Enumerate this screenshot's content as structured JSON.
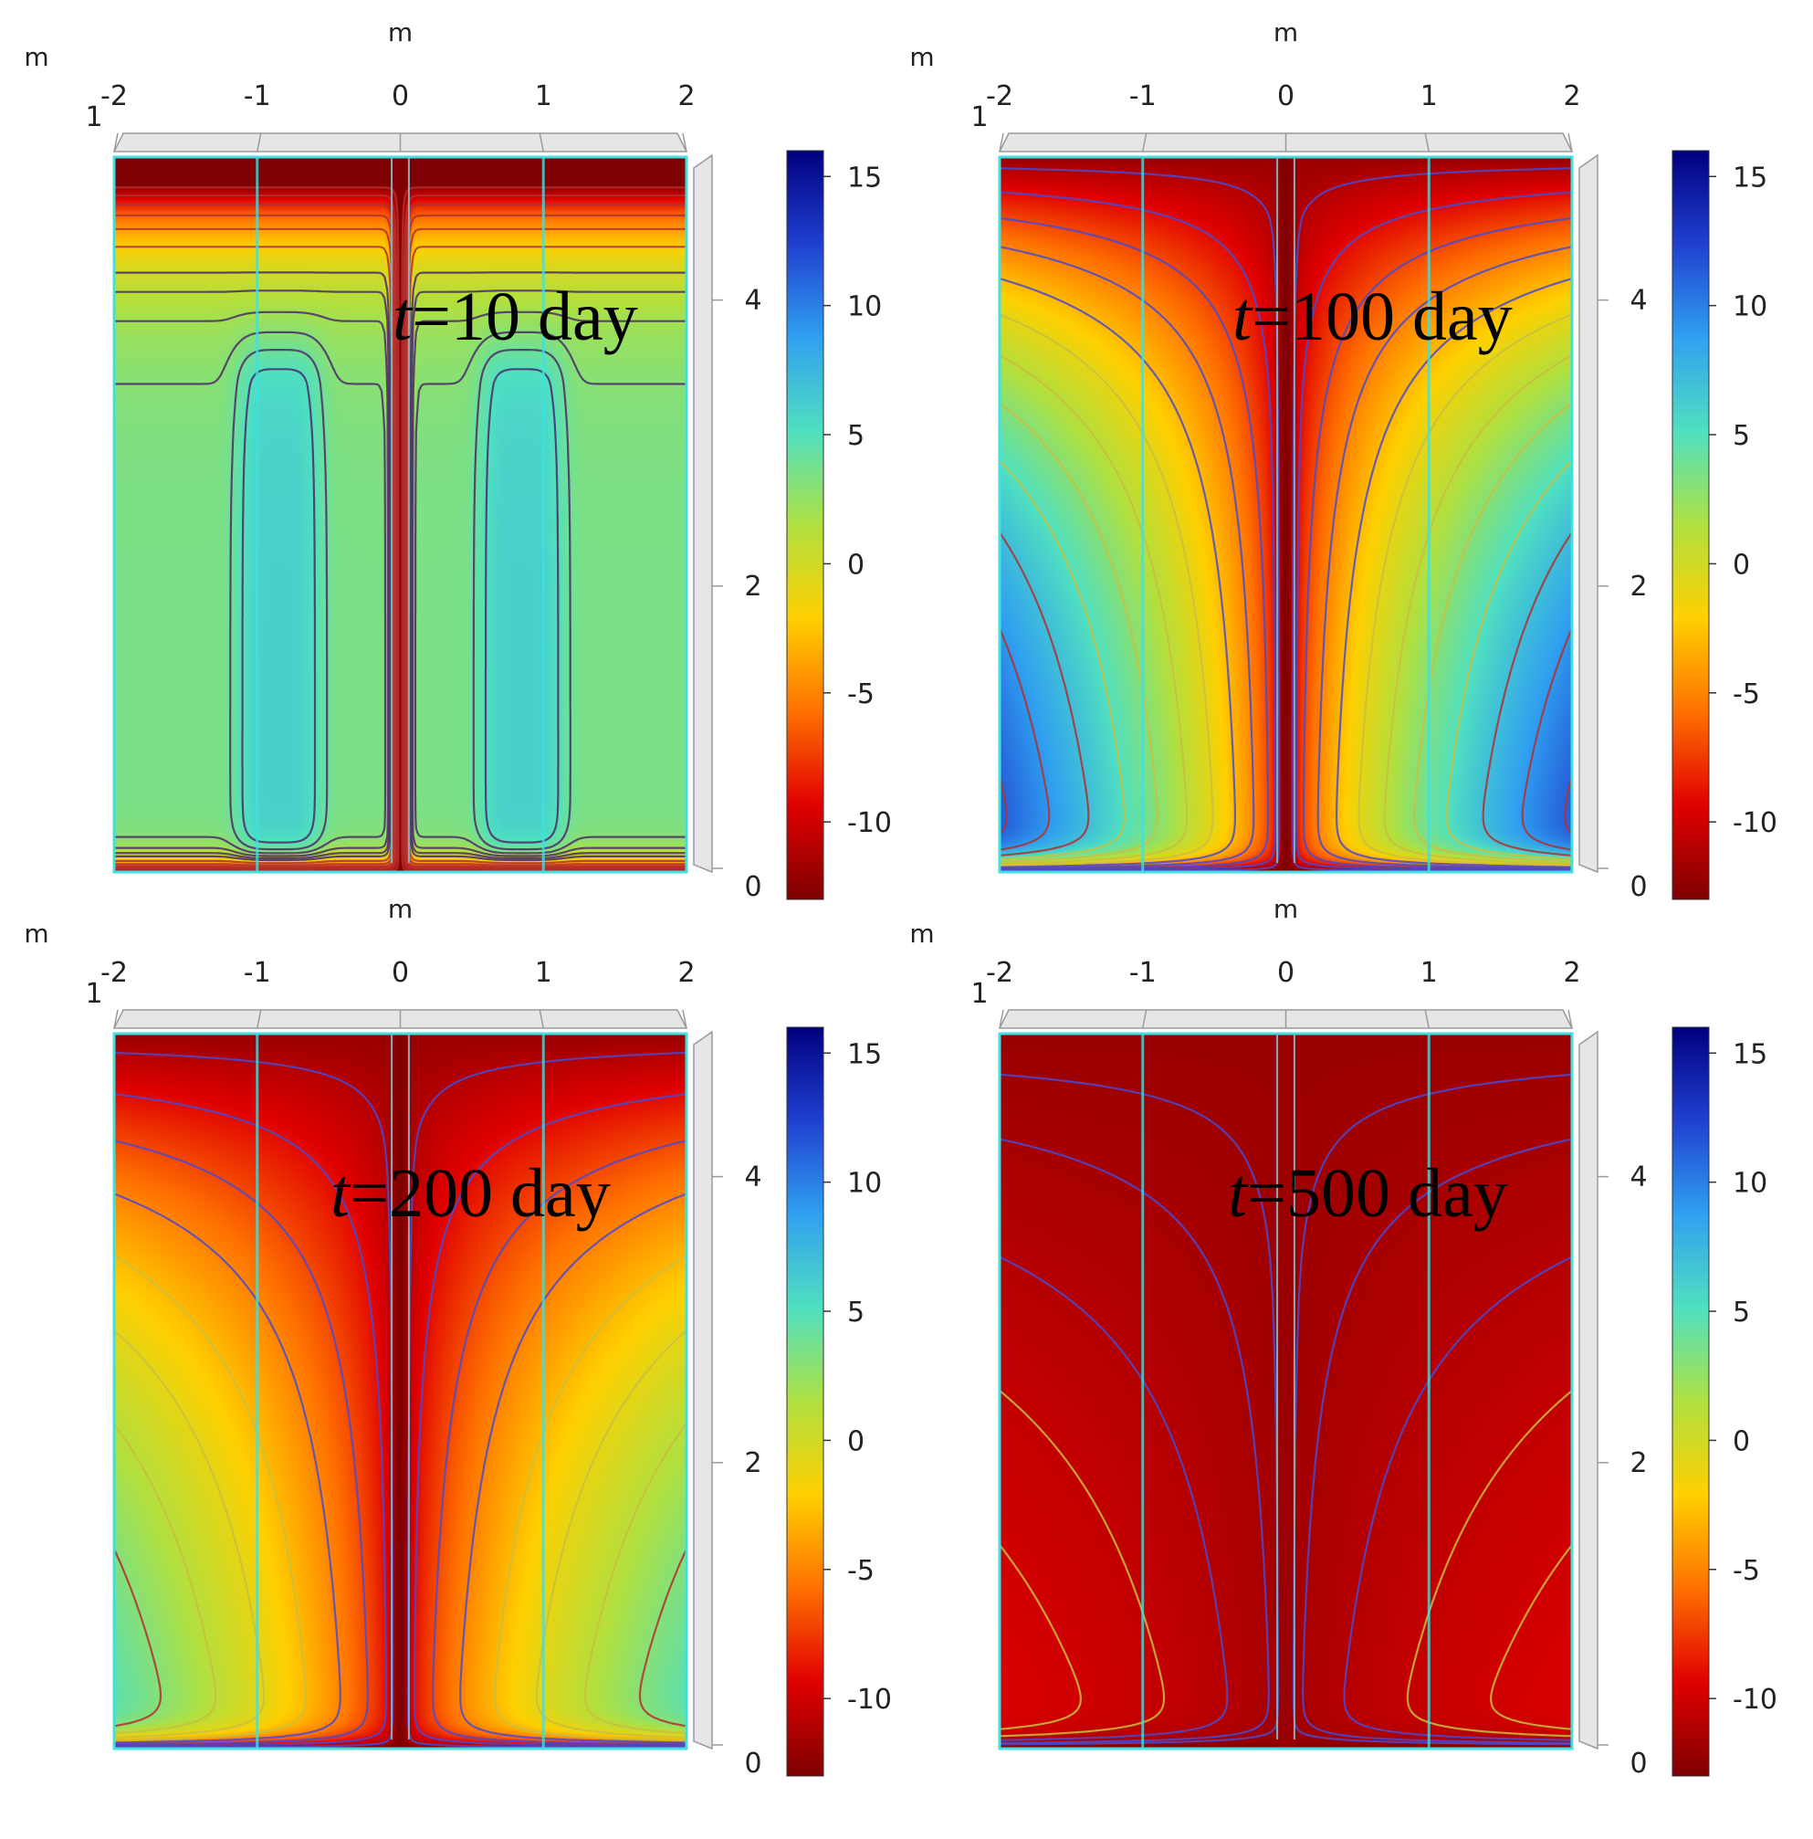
{
  "chart_data": [
    {
      "type": "heatmap",
      "title": "t=10 day",
      "time": {
        "italic": "t",
        "rest": "=10 day"
      },
      "xlabel": "m",
      "ylabel": "m",
      "x_ticks": [
        -2,
        -1,
        0,
        1,
        2
      ],
      "y_ticks": [
        0,
        2,
        4
      ],
      "corner_tick": "1",
      "xlim": [
        -2,
        2
      ],
      "ylim": [
        0,
        5
      ],
      "colorbar": {
        "ticks": [
          15,
          10,
          5,
          0,
          -5,
          -10
        ],
        "range": [
          -13,
          16
        ]
      },
      "field": {
        "top": -13,
        "topband_z": 1.2,
        "cell": 6,
        "cell_x": 0.85,
        "cell_width": 0.3,
        "cell_bottom": 0.2,
        "cell_top": 3.4,
        "far": 3.5,
        "bottom": -13,
        "trench": -13
      },
      "contour_levels": [
        -12,
        -10,
        -8,
        -6,
        -4,
        -2,
        0,
        1,
        2,
        3,
        4,
        5
      ]
    },
    {
      "type": "heatmap",
      "title": "t=100 day",
      "time": {
        "italic": "t",
        "rest": "=100 day"
      },
      "xlabel": "m",
      "ylabel": "m",
      "x_ticks": [
        -2,
        -1,
        0,
        1,
        2
      ],
      "y_ticks": [
        0,
        2,
        4
      ],
      "corner_tick": "1",
      "xlim": [
        -2,
        2
      ],
      "ylim": [
        0,
        5
      ],
      "colorbar": {
        "ticks": [
          15,
          10,
          5,
          0,
          -5,
          -10
        ],
        "range": [
          -13,
          16
        ]
      },
      "field": {
        "top": -12,
        "top_decay": 2.0,
        "deep": 14,
        "deep_at_x": 2.0,
        "bottom": -13,
        "trench": -13
      },
      "contour_levels": [
        -11,
        -9,
        -7,
        -5,
        -3,
        -1,
        1,
        3,
        5,
        7,
        9,
        11,
        13
      ]
    },
    {
      "type": "heatmap",
      "title": "t=200 day",
      "time": {
        "italic": "t",
        "rest": "=200 day"
      },
      "xlabel": "m",
      "ylabel": "m",
      "x_ticks": [
        -2,
        -1,
        0,
        1,
        2
      ],
      "y_ticks": [
        0,
        2,
        4
      ],
      "corner_tick": "1",
      "xlim": [
        -2,
        2
      ],
      "ylim": [
        0,
        5
      ],
      "colorbar": {
        "ticks": [
          15,
          10,
          5,
          0,
          -5,
          -10
        ],
        "range": [
          -13,
          16
        ]
      },
      "field": {
        "top": -12,
        "top_decay": 2.6,
        "deep": 8,
        "deep_at_x": 2.0,
        "bottom": -13,
        "trench": -13
      },
      "contour_levels": [
        -11,
        -9,
        -7,
        -5,
        -3,
        -1,
        1,
        3,
        5,
        7
      ]
    },
    {
      "type": "heatmap",
      "title": "t=500 day",
      "time": {
        "italic": "t",
        "rest": "=500 day"
      },
      "xlabel": "m",
      "ylabel": "m",
      "x_ticks": [
        -2,
        -1,
        0,
        1,
        2
      ],
      "y_ticks": [
        0,
        2,
        4
      ],
      "corner_tick": "1",
      "xlim": [
        -2,
        2
      ],
      "ylim": [
        0,
        5
      ],
      "colorbar": {
        "ticks": [
          15,
          10,
          5,
          0,
          -5,
          -10
        ],
        "range": [
          -13,
          16
        ]
      },
      "field": {
        "top": -12,
        "top_decay": 7.0,
        "deep": -7,
        "deep_at_x": 2.0,
        "bottom": -13,
        "trench": -12
      },
      "contour_levels": [
        -11.8,
        -11.5,
        -11,
        -10.5,
        -10,
        -9.5,
        -9,
        -8.5,
        -8
      ]
    }
  ]
}
